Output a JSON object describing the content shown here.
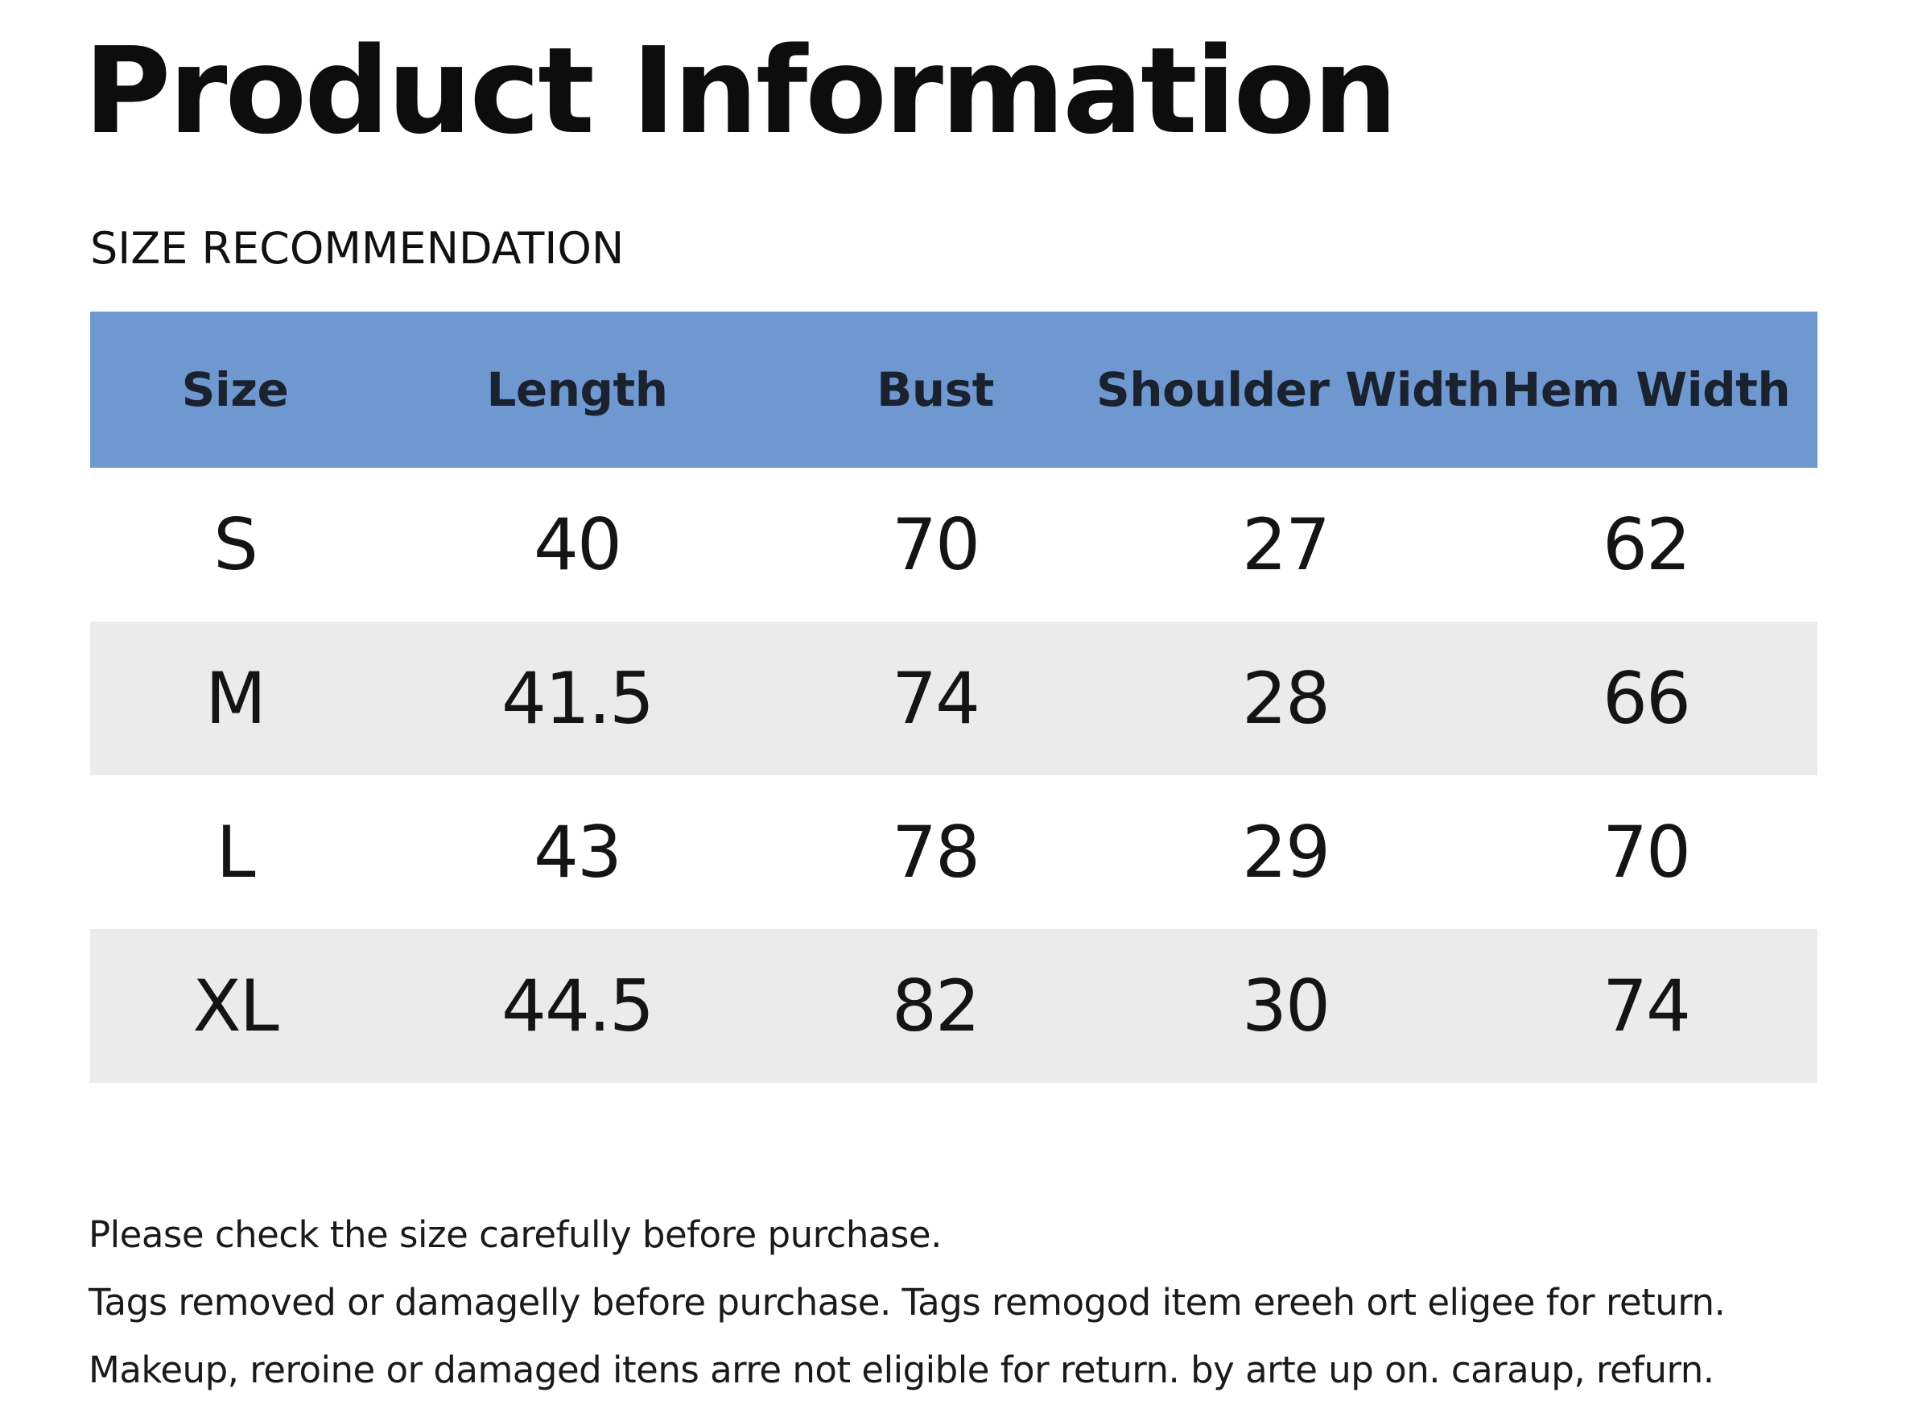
{
  "title": "Product Information",
  "section_heading": "SIZE RECOMMENDATION",
  "colors": {
    "header_bg": "#6f98d0",
    "stripe_bg": "#ebebeb",
    "text": "#111111"
  },
  "table": {
    "headers": [
      "Size",
      "Length",
      "Bust",
      "Shoulder Width",
      "Hem Width"
    ],
    "rows": [
      [
        "S",
        "40",
        "70",
        "27",
        "62"
      ],
      [
        "M",
        "41.5",
        "74",
        "28",
        "66"
      ],
      [
        "L",
        "43",
        "78",
        "29",
        "70"
      ],
      [
        "XL",
        "44.5",
        "82",
        "30",
        "74"
      ]
    ]
  },
  "notes": [
    "Please check the size carefully before purchase.",
    "Tags removed or damagelly before purchase. Tags remogod item ereeh ort eligee for return.",
    "Makeup, reroine or damaged itens arre not eligible for return. by arte up on. caraup, refurn."
  ]
}
